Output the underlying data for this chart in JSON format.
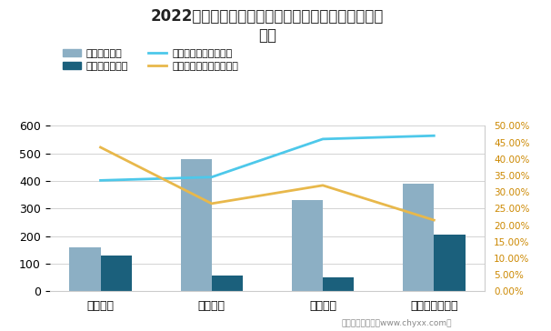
{
  "title_line1": "2022年周大福、六福集团在中国内地新增店铺数量及",
  "title_line2": "增速",
  "categories": [
    "一线城市",
    "二线城市",
    "三线城市",
    "四线城市及以下"
  ],
  "bar1_values": [
    160,
    480,
    330,
    390
  ],
  "bar2_values": [
    130,
    58,
    52,
    205
  ],
  "line1_values": [
    0.335,
    0.345,
    0.46,
    0.47
  ],
  "line2_values": [
    0.435,
    0.265,
    0.32,
    0.215
  ],
  "bar1_color": "#8CAFC4",
  "bar2_color": "#1B607C",
  "line1_color": "#4DC8EA",
  "line2_color": "#E8B84B",
  "ylim_left": [
    0,
    600
  ],
  "ylim_right": [
    0.0,
    0.5
  ],
  "yticks_left": [
    0,
    100,
    200,
    300,
    400,
    500,
    600
  ],
  "yticks_right": [
    0.0,
    0.05,
    0.1,
    0.15,
    0.2,
    0.25,
    0.3,
    0.35,
    0.4,
    0.45,
    0.5
  ],
  "legend_labels": [
    "周大福（家）",
    "六福集团（家）",
    "周大福零售值同比增长",
    "六福集团零售值同比增长"
  ],
  "bg_color": "#FFFFFF",
  "grid_color": "#CCCCCC",
  "right_axis_color": "#CC8800",
  "footer": "制图：智研咨询（www.chyxx.com）"
}
